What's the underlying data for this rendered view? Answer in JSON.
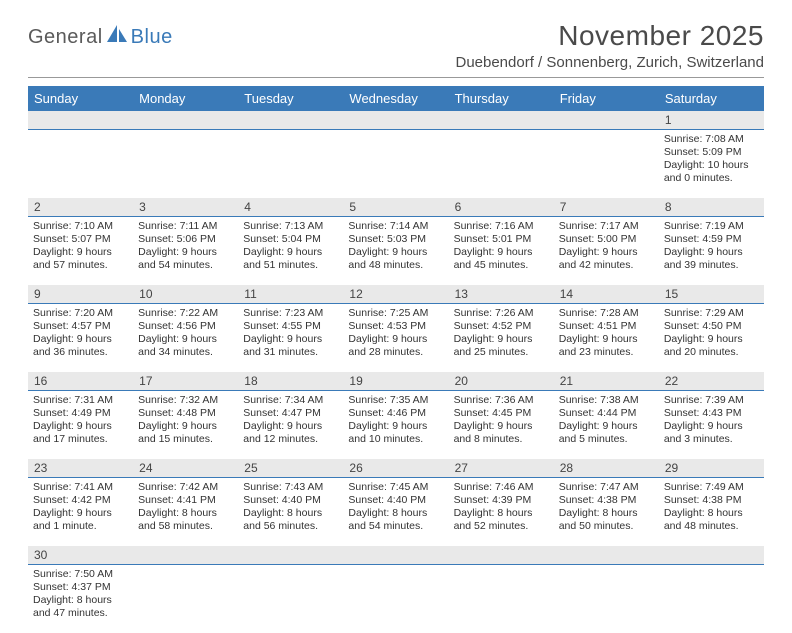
{
  "logo": {
    "text1": "General",
    "text2": "Blue"
  },
  "title": "November 2025",
  "location": "Duebendorf / Sonnenberg, Zurich, Switzerland",
  "colors": {
    "headerBlue": "#3a7ab8",
    "grayBand": "#e9e9e9",
    "text": "#333333",
    "titleText": "#4a4a4a"
  },
  "dayNames": [
    "Sunday",
    "Monday",
    "Tuesday",
    "Wednesday",
    "Thursday",
    "Friday",
    "Saturday"
  ],
  "weeks": [
    [
      null,
      null,
      null,
      null,
      null,
      null,
      {
        "n": 1,
        "sr": "7:08 AM",
        "ss": "5:09 PM",
        "dl": "10 hours and 0 minutes."
      }
    ],
    [
      {
        "n": 2,
        "sr": "7:10 AM",
        "ss": "5:07 PM",
        "dl": "9 hours and 57 minutes."
      },
      {
        "n": 3,
        "sr": "7:11 AM",
        "ss": "5:06 PM",
        "dl": "9 hours and 54 minutes."
      },
      {
        "n": 4,
        "sr": "7:13 AM",
        "ss": "5:04 PM",
        "dl": "9 hours and 51 minutes."
      },
      {
        "n": 5,
        "sr": "7:14 AM",
        "ss": "5:03 PM",
        "dl": "9 hours and 48 minutes."
      },
      {
        "n": 6,
        "sr": "7:16 AM",
        "ss": "5:01 PM",
        "dl": "9 hours and 45 minutes."
      },
      {
        "n": 7,
        "sr": "7:17 AM",
        "ss": "5:00 PM",
        "dl": "9 hours and 42 minutes."
      },
      {
        "n": 8,
        "sr": "7:19 AM",
        "ss": "4:59 PM",
        "dl": "9 hours and 39 minutes."
      }
    ],
    [
      {
        "n": 9,
        "sr": "7:20 AM",
        "ss": "4:57 PM",
        "dl": "9 hours and 36 minutes."
      },
      {
        "n": 10,
        "sr": "7:22 AM",
        "ss": "4:56 PM",
        "dl": "9 hours and 34 minutes."
      },
      {
        "n": 11,
        "sr": "7:23 AM",
        "ss": "4:55 PM",
        "dl": "9 hours and 31 minutes."
      },
      {
        "n": 12,
        "sr": "7:25 AM",
        "ss": "4:53 PM",
        "dl": "9 hours and 28 minutes."
      },
      {
        "n": 13,
        "sr": "7:26 AM",
        "ss": "4:52 PM",
        "dl": "9 hours and 25 minutes."
      },
      {
        "n": 14,
        "sr": "7:28 AM",
        "ss": "4:51 PM",
        "dl": "9 hours and 23 minutes."
      },
      {
        "n": 15,
        "sr": "7:29 AM",
        "ss": "4:50 PM",
        "dl": "9 hours and 20 minutes."
      }
    ],
    [
      {
        "n": 16,
        "sr": "7:31 AM",
        "ss": "4:49 PM",
        "dl": "9 hours and 17 minutes."
      },
      {
        "n": 17,
        "sr": "7:32 AM",
        "ss": "4:48 PM",
        "dl": "9 hours and 15 minutes."
      },
      {
        "n": 18,
        "sr": "7:34 AM",
        "ss": "4:47 PM",
        "dl": "9 hours and 12 minutes."
      },
      {
        "n": 19,
        "sr": "7:35 AM",
        "ss": "4:46 PM",
        "dl": "9 hours and 10 minutes."
      },
      {
        "n": 20,
        "sr": "7:36 AM",
        "ss": "4:45 PM",
        "dl": "9 hours and 8 minutes."
      },
      {
        "n": 21,
        "sr": "7:38 AM",
        "ss": "4:44 PM",
        "dl": "9 hours and 5 minutes."
      },
      {
        "n": 22,
        "sr": "7:39 AM",
        "ss": "4:43 PM",
        "dl": "9 hours and 3 minutes."
      }
    ],
    [
      {
        "n": 23,
        "sr": "7:41 AM",
        "ss": "4:42 PM",
        "dl": "9 hours and 1 minute."
      },
      {
        "n": 24,
        "sr": "7:42 AM",
        "ss": "4:41 PM",
        "dl": "8 hours and 58 minutes."
      },
      {
        "n": 25,
        "sr": "7:43 AM",
        "ss": "4:40 PM",
        "dl": "8 hours and 56 minutes."
      },
      {
        "n": 26,
        "sr": "7:45 AM",
        "ss": "4:40 PM",
        "dl": "8 hours and 54 minutes."
      },
      {
        "n": 27,
        "sr": "7:46 AM",
        "ss": "4:39 PM",
        "dl": "8 hours and 52 minutes."
      },
      {
        "n": 28,
        "sr": "7:47 AM",
        "ss": "4:38 PM",
        "dl": "8 hours and 50 minutes."
      },
      {
        "n": 29,
        "sr": "7:49 AM",
        "ss": "4:38 PM",
        "dl": "8 hours and 48 minutes."
      }
    ],
    [
      {
        "n": 30,
        "sr": "7:50 AM",
        "ss": "4:37 PM",
        "dl": "8 hours and 47 minutes."
      },
      null,
      null,
      null,
      null,
      null,
      null
    ]
  ],
  "labels": {
    "sunrise": "Sunrise:",
    "sunset": "Sunset:",
    "daylight": "Daylight:"
  }
}
